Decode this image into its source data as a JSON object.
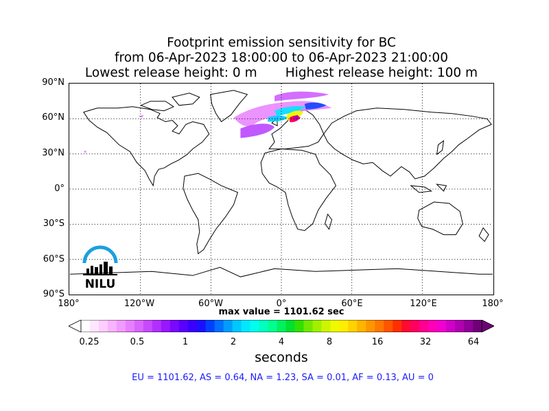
{
  "title": {
    "line1": "Footprint emission sensitivity for BC",
    "line2": "from 06-Apr-2023 18:00:00 to 06-Apr-2023 21:00:00",
    "lowest": "Lowest release height: 0 m",
    "highest": "Highest release height: 100 m"
  },
  "axes": {
    "lat_labels": [
      "90°N",
      "60°N",
      "30°N",
      "0°",
      "30°S",
      "60°S",
      "90°S"
    ],
    "lon_labels": [
      "180°",
      "120°W",
      "60°W",
      "0°",
      "60°E",
      "120°E",
      "180°"
    ]
  },
  "max_value": "max value = 1101.62 sec",
  "colorbar": {
    "tick_labels": [
      "0.25",
      "0.5",
      "1",
      "2",
      "4",
      "8",
      "16",
      "32",
      "64"
    ],
    "units": "seconds",
    "colors": [
      "#ffffff",
      "#ffe6ff",
      "#ffcdff",
      "#f9b3ff",
      "#f19aff",
      "#e780ff",
      "#d965ff",
      "#c84aff",
      "#b230ff",
      "#9818ff",
      "#7a08ff",
      "#5a00ff",
      "#3a00ff",
      "#1a10ff",
      "#0040ff",
      "#0070ff",
      "#009dff",
      "#00c8ff",
      "#00e8ff",
      "#00ffee",
      "#00ffc0",
      "#00ff90",
      "#00f060",
      "#00e030",
      "#30e000",
      "#70e800",
      "#a0f000",
      "#cdf500",
      "#eefa00",
      "#ffee00",
      "#ffd200",
      "#ffb400",
      "#ff9600",
      "#ff7800",
      "#ff5500",
      "#ff3000",
      "#ff0a30",
      "#ff0060",
      "#ff0090",
      "#ff00b8",
      "#f000d0",
      "#d000c8",
      "#b000b0",
      "#900098",
      "#700078"
    ]
  },
  "regions_text": "EU = 1101.62,  AS = 0.64,  NA = 1.23,  SA = 0.01,  AF = 0.13,  AU = 0",
  "logo_text": "NILU",
  "colors": {
    "logo_arc": "#1aa0e0",
    "regions": "#1a1aff"
  }
}
